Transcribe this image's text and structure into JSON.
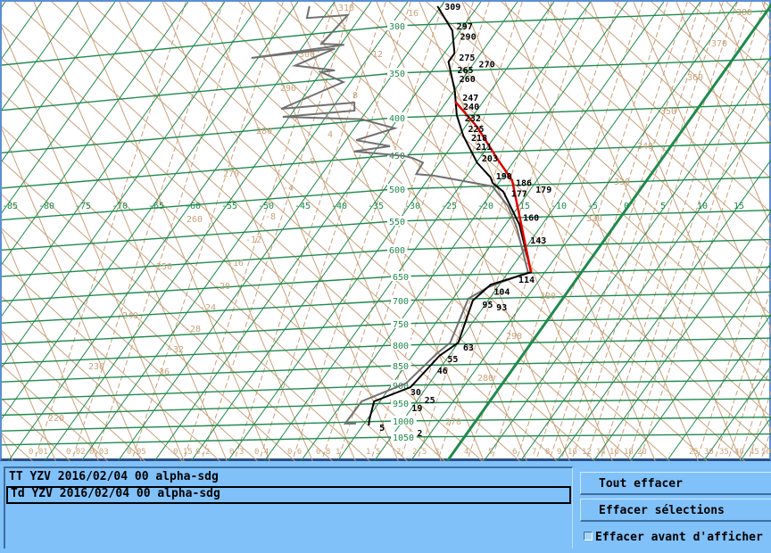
{
  "diagram": {
    "pressure_labels": [
      "300",
      "350",
      "400",
      "450",
      "500",
      "550",
      "600",
      "650",
      "700",
      "750",
      "800",
      "850",
      "900",
      "950",
      "1000",
      "1050"
    ],
    "temperature_labels": [
      "-85",
      "-80",
      "-75",
      "-70",
      "-65",
      "-60",
      "-55",
      "-50",
      "-45",
      "-40",
      "-35",
      "-30",
      "-25",
      "-20",
      "-15",
      "-10",
      "-5",
      "0",
      "5",
      "10",
      "15"
    ],
    "theta_labels": [
      "220",
      "230",
      "240",
      "250",
      "260",
      "270",
      "280",
      "290",
      "300",
      "310",
      "320",
      "330",
      "340",
      "350",
      "360",
      "370",
      "380"
    ],
    "theta_labels_lower": [
      "270",
      "280",
      "290",
      "300"
    ],
    "wetbulb_labels": [
      "16",
      "12",
      "8",
      "4",
      "0",
      "-4",
      "-8",
      "-12",
      "-16",
      "-20",
      "-24",
      "-28",
      "-32",
      "-36"
    ],
    "mixing_ratio_labels": [
      "0.01",
      "0.02",
      "0.03",
      "0.05",
      "0.15",
      "0.2",
      "0.3",
      "0.4",
      "0.6",
      "0.8",
      "1",
      "1.5",
      "2",
      "2.5",
      "3",
      "4",
      "5",
      "6",
      "7",
      "8",
      "9",
      "10",
      "12",
      "14",
      "16",
      "18",
      "20",
      "25",
      "30",
      "35",
      "40",
      "45",
      "50"
    ],
    "colors": {
      "isobar": "#1f8a4c",
      "isotherm": "#1f8a4c",
      "adiabat": "#c9a27c",
      "tt": "#000000",
      "td": "#707070",
      "highlight": "#e00000",
      "panel": "#80c1f9"
    }
  },
  "chart_data": {
    "type": "line",
    "xlabel": "",
    "ylabel": "",
    "x_unit_ticks": "temperature (°C)",
    "y_axis": "pressure (hPa), log-like, inverted",
    "ylim": [
      1050,
      280
    ],
    "grid": true,
    "tt": [
      [
        280,
        -45.5
      ],
      [
        305,
        -41.1
      ],
      [
        329,
        -38.6
      ],
      [
        338,
        -38.6
      ],
      [
        370,
        -34.9
      ],
      [
        397,
        -32.3
      ],
      [
        424,
        -29.4
      ],
      [
        461,
        -24.9
      ],
      [
        483,
        -21.6
      ],
      [
        491,
        -20.8
      ],
      [
        504,
        -18.5
      ],
      [
        556,
        -13.1
      ],
      [
        642,
        -6.9
      ],
      [
        667,
        -11.2
      ],
      [
        700,
        -12.1
      ],
      [
        794,
        -10.0
      ],
      [
        826,
        -11.3
      ],
      [
        905,
        -12.2
      ],
      [
        945,
        -15.8
      ],
      [
        995,
        -14.7
      ],
      [
        1014,
        -14.2
      ]
    ],
    "td": [
      [
        280,
        -63.0
      ],
      [
        292,
        -62.2
      ],
      [
        289,
        -56.9
      ],
      [
        319,
        -57.7
      ],
      [
        320,
        -54.5
      ],
      [
        334,
        -65.9
      ],
      [
        324,
        -55.4
      ],
      [
        342,
        -59.2
      ],
      [
        347,
        -53.3
      ],
      [
        349,
        -55.0
      ],
      [
        360,
        -51.0
      ],
      [
        390,
        -56.9
      ],
      [
        383,
        -47.5
      ],
      [
        392,
        -46.7
      ],
      [
        399,
        -55.9
      ],
      [
        402,
        -44.9
      ],
      [
        414,
        -39.5
      ],
      [
        430,
        -43.6
      ],
      [
        438,
        -38.4
      ],
      [
        445,
        -42.8
      ],
      [
        451,
        -35.6
      ],
      [
        454,
        -34.2
      ],
      [
        461,
        -32.3
      ],
      [
        478,
        -32.1
      ],
      [
        480,
        -29.7
      ],
      [
        487,
        -25.6
      ],
      [
        496,
        -20.5
      ],
      [
        527,
        -16.4
      ],
      [
        561,
        -13.2
      ],
      [
        642,
        -7.3
      ],
      [
        672,
        -11.3
      ],
      [
        696,
        -12.9
      ],
      [
        794,
        -11.1
      ],
      [
        822,
        -11.9
      ],
      [
        895,
        -13.2
      ],
      [
        945,
        -17.5
      ],
      [
        1008,
        -17.6
      ],
      [
        1008,
        -16.1
      ]
    ],
    "highlight": [
      [
        382,
        -33.8
      ],
      [
        412,
        -28.4
      ],
      [
        457,
        -22.3
      ],
      [
        487,
        -18.4
      ],
      [
        541,
        -14.0
      ],
      [
        642,
        -6.9
      ]
    ],
    "height_labels": [
      {
        "label": "309",
        "p": 280
      },
      {
        "label": "297",
        "p": 300
      },
      {
        "label": "290",
        "p": 311
      },
      {
        "label": "275",
        "p": 333
      },
      {
        "label": "270",
        "p": 340
      },
      {
        "label": "265",
        "p": 346
      },
      {
        "label": "260",
        "p": 356
      },
      {
        "label": "247",
        "p": 377
      },
      {
        "label": "240",
        "p": 387
      },
      {
        "label": "232",
        "p": 400
      },
      {
        "label": "225",
        "p": 414
      },
      {
        "label": "218",
        "p": 426
      },
      {
        "label": "211",
        "p": 438
      },
      {
        "label": "203",
        "p": 454
      },
      {
        "label": "190",
        "p": 480
      },
      {
        "label": "186",
        "p": 490
      },
      {
        "label": "179",
        "p": 500
      },
      {
        "label": "177",
        "p": 506
      },
      {
        "label": "160",
        "p": 544
      },
      {
        "label": "143",
        "p": 583
      },
      {
        "label": "114",
        "p": 656
      },
      {
        "label": "104",
        "p": 681
      },
      {
        "label": "95",
        "p": 708
      },
      {
        "label": "93",
        "p": 713
      },
      {
        "label": "63",
        "p": 804
      },
      {
        "label": "55",
        "p": 833
      },
      {
        "label": "46",
        "p": 861
      },
      {
        "label": "30",
        "p": 917
      },
      {
        "label": "25",
        "p": 940
      },
      {
        "label": "19",
        "p": 962
      },
      {
        "label": "5",
        "p": 1020
      },
      {
        "label": "2",
        "p": 1036
      }
    ]
  },
  "list": {
    "items": [
      {
        "label": "TT YZV 2016/02/04 00 alpha-sdg",
        "selected": false
      },
      {
        "label": "Td YZV 2016/02/04 00 alpha-sdg",
        "selected": true
      }
    ]
  },
  "buttons": {
    "clear_all": "Tout effacer",
    "clear_selected": "Effacer sélections"
  },
  "checkbox": {
    "label": "Effacer avant d'afficher",
    "checked": false
  }
}
